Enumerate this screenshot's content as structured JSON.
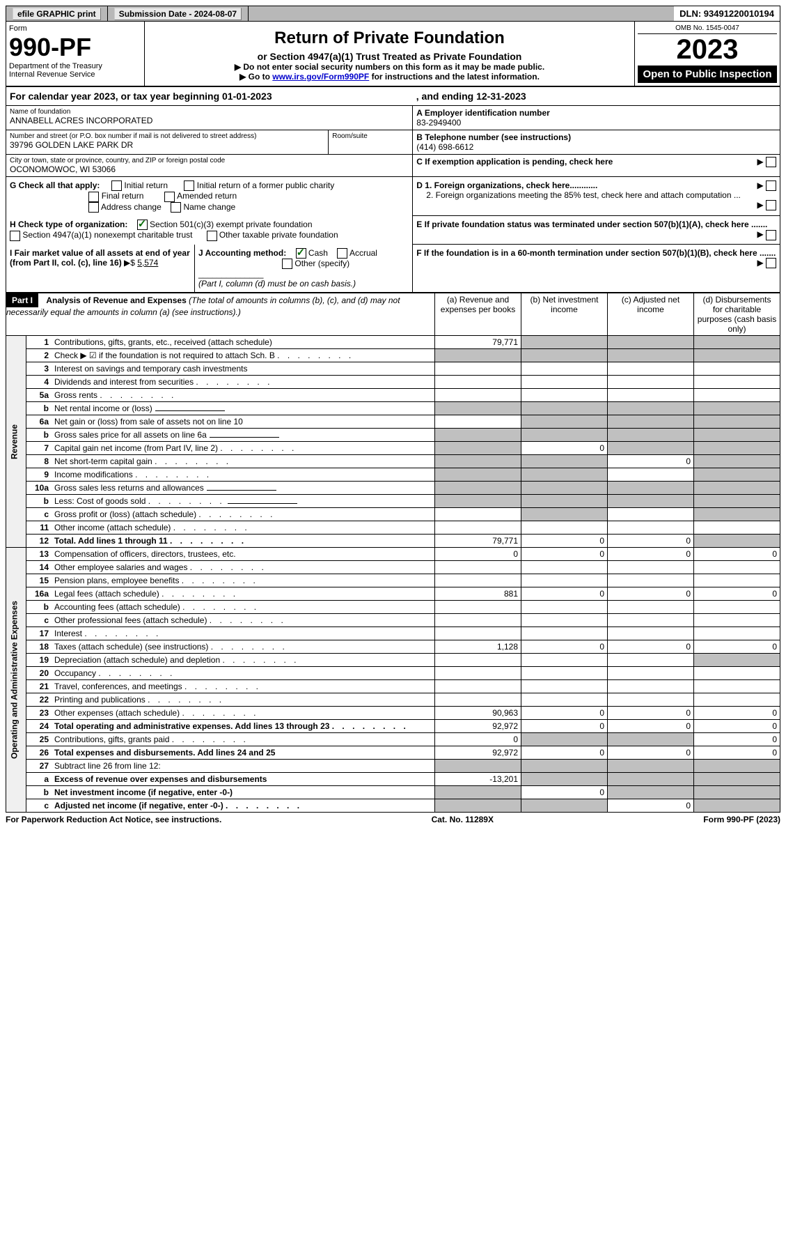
{
  "topBar": {
    "efile": "efile GRAPHIC print",
    "submissionLabel": "Submission Date - 2024-08-07",
    "dln": "DLN: 93491220010194"
  },
  "header": {
    "formLabel": "Form",
    "formNumber": "990-PF",
    "dept": "Department of the Treasury",
    "irs": "Internal Revenue Service",
    "title": "Return of Private Foundation",
    "subtitle": "or Section 4947(a)(1) Trust Treated as Private Foundation",
    "note1": "▶ Do not enter social security numbers on this form as it may be made public.",
    "note2Prefix": "▶ Go to ",
    "note2Link": "www.irs.gov/Form990PF",
    "note2Suffix": " for instructions and the latest information.",
    "omb": "OMB No. 1545-0047",
    "year": "2023",
    "openPublic": "Open to Public Inspection"
  },
  "calendar": {
    "text": "For calendar year 2023, or tax year beginning 01-01-2023",
    "ending": ", and ending 12-31-2023"
  },
  "entity": {
    "nameLabel": "Name of foundation",
    "name": "ANNABELL ACRES INCORPORATED",
    "addressLabel": "Number and street (or P.O. box number if mail is not delivered to street address)",
    "address": "39796 GOLDEN LAKE PARK DR",
    "roomLabel": "Room/suite",
    "cityLabel": "City or town, state or province, country, and ZIP or foreign postal code",
    "city": "OCONOMOWOC, WI  53066",
    "einLabel": "A Employer identification number",
    "ein": "83-2949400",
    "phoneLabel": "B Telephone number (see instructions)",
    "phone": "(414) 698-6612",
    "cLabel": "C If exemption application is pending, check here"
  },
  "checks": {
    "gLabel": "G Check all that apply:",
    "initial": "Initial return",
    "initialFormer": "Initial return of a former public charity",
    "final": "Final return",
    "amended": "Amended return",
    "addressChange": "Address change",
    "nameChange": "Name change",
    "hLabel": "H Check type of organization:",
    "h501c3": "Section 501(c)(3) exempt private foundation",
    "h4947": "Section 4947(a)(1) nonexempt charitable trust",
    "hOther": "Other taxable private foundation",
    "iLabel": "I Fair market value of all assets at end of year (from Part II, col. (c), line 16)",
    "iValue": "5,574",
    "jLabel": "J Accounting method:",
    "jCash": "Cash",
    "jAccrual": "Accrual",
    "jOther": "Other (specify)",
    "jNote": "(Part I, column (d) must be on cash basis.)",
    "d1": "D 1. Foreign organizations, check here............",
    "d2": "2. Foreign organizations meeting the 85% test, check here and attach computation ...",
    "eLabel": "E  If private foundation status was terminated under section 507(b)(1)(A), check here .......",
    "fLabel": "F  If the foundation is in a 60-month termination under section 507(b)(1)(B), check here .......",
    "arrow": "▶"
  },
  "part1": {
    "label": "Part I",
    "title": "Analysis of Revenue and Expenses",
    "titleNote": " (The total of amounts in columns (b), (c), and (d) may not necessarily equal the amounts in column (a) (see instructions).)",
    "colA": "(a)   Revenue and expenses per books",
    "colB": "(b)   Net investment income",
    "colC": "(c)   Adjusted net income",
    "colD": "(d)   Disbursements for charitable purposes (cash basis only)",
    "revenueLabel": "Revenue",
    "opExpLabel": "Operating and Administrative Expenses"
  },
  "rows": [
    {
      "n": "1",
      "desc": "Contributions, gifts, grants, etc., received (attach schedule)",
      "a": "79,771",
      "grey": [
        "b",
        "c",
        "d"
      ]
    },
    {
      "n": "2",
      "desc": "Check ▶ ☑ if the foundation is not required to attach Sch. B",
      "dots": true,
      "grey": [
        "a",
        "b",
        "c",
        "d"
      ]
    },
    {
      "n": "3",
      "desc": "Interest on savings and temporary cash investments"
    },
    {
      "n": "4",
      "desc": "Dividends and interest from securities",
      "dots": true
    },
    {
      "n": "5a",
      "desc": "Gross rents",
      "dots": true
    },
    {
      "n": "b",
      "desc": "Net rental income or (loss)",
      "input": true,
      "grey": [
        "a",
        "b",
        "c",
        "d"
      ]
    },
    {
      "n": "6a",
      "desc": "Net gain or (loss) from sale of assets not on line 10",
      "grey": [
        "b",
        "c",
        "d"
      ]
    },
    {
      "n": "b",
      "desc": "Gross sales price for all assets on line 6a",
      "input": true,
      "grey": [
        "a",
        "b",
        "c",
        "d"
      ]
    },
    {
      "n": "7",
      "desc": "Capital gain net income (from Part IV, line 2)",
      "dots": true,
      "b": "0",
      "grey": [
        "a",
        "c",
        "d"
      ]
    },
    {
      "n": "8",
      "desc": "Net short-term capital gain",
      "dots": true,
      "c": "0",
      "grey": [
        "a",
        "b",
        "d"
      ]
    },
    {
      "n": "9",
      "desc": "Income modifications",
      "dots": true,
      "grey": [
        "a",
        "b",
        "d"
      ]
    },
    {
      "n": "10a",
      "desc": "Gross sales less returns and allowances",
      "input": true,
      "grey": [
        "a",
        "b",
        "c",
        "d"
      ]
    },
    {
      "n": "b",
      "desc": "Less: Cost of goods sold",
      "dots": true,
      "input": true,
      "grey": [
        "a",
        "b",
        "c",
        "d"
      ]
    },
    {
      "n": "c",
      "desc": "Gross profit or (loss) (attach schedule)",
      "dots": true,
      "grey": [
        "b",
        "d"
      ]
    },
    {
      "n": "11",
      "desc": "Other income (attach schedule)",
      "dots": true
    },
    {
      "n": "12",
      "desc": "Total. Add lines 1 through 11",
      "dots": true,
      "bold": true,
      "a": "79,771",
      "b": "0",
      "c": "0",
      "grey": [
        "d"
      ]
    },
    {
      "n": "13",
      "desc": "Compensation of officers, directors, trustees, etc.",
      "a": "0",
      "b": "0",
      "c": "0",
      "d": "0"
    },
    {
      "n": "14",
      "desc": "Other employee salaries and wages",
      "dots": true
    },
    {
      "n": "15",
      "desc": "Pension plans, employee benefits",
      "dots": true
    },
    {
      "n": "16a",
      "desc": "Legal fees (attach schedule)",
      "dots": true,
      "a": "881",
      "b": "0",
      "c": "0",
      "d": "0"
    },
    {
      "n": "b",
      "desc": "Accounting fees (attach schedule)",
      "dots": true
    },
    {
      "n": "c",
      "desc": "Other professional fees (attach schedule)",
      "dots": true
    },
    {
      "n": "17",
      "desc": "Interest",
      "dots": true
    },
    {
      "n": "18",
      "desc": "Taxes (attach schedule) (see instructions)",
      "dots": true,
      "a": "1,128",
      "b": "0",
      "c": "0",
      "d": "0"
    },
    {
      "n": "19",
      "desc": "Depreciation (attach schedule) and depletion",
      "dots": true,
      "grey": [
        "d"
      ]
    },
    {
      "n": "20",
      "desc": "Occupancy",
      "dots": true
    },
    {
      "n": "21",
      "desc": "Travel, conferences, and meetings",
      "dots": true
    },
    {
      "n": "22",
      "desc": "Printing and publications",
      "dots": true
    },
    {
      "n": "23",
      "desc": "Other expenses (attach schedule)",
      "dots": true,
      "a": "90,963",
      "b": "0",
      "c": "0",
      "d": "0"
    },
    {
      "n": "24",
      "desc": "Total operating and administrative expenses. Add lines 13 through 23",
      "dots": true,
      "bold": true,
      "a": "92,972",
      "b": "0",
      "c": "0",
      "d": "0"
    },
    {
      "n": "25",
      "desc": "Contributions, gifts, grants paid",
      "dots": true,
      "a": "0",
      "d": "0",
      "grey": [
        "b",
        "c"
      ]
    },
    {
      "n": "26",
      "desc": "Total expenses and disbursements. Add lines 24 and 25",
      "bold": true,
      "a": "92,972",
      "b": "0",
      "c": "0",
      "d": "0"
    },
    {
      "n": "27",
      "desc": "Subtract line 26 from line 12:",
      "grey": [
        "a",
        "b",
        "c",
        "d"
      ]
    },
    {
      "n": "a",
      "desc": "Excess of revenue over expenses and disbursements",
      "bold": true,
      "a": "-13,201",
      "grey": [
        "b",
        "c",
        "d"
      ]
    },
    {
      "n": "b",
      "desc": "Net investment income (if negative, enter -0-)",
      "bold": true,
      "b": "0",
      "grey": [
        "a",
        "c",
        "d"
      ]
    },
    {
      "n": "c",
      "desc": "Adjusted net income (if negative, enter -0-)",
      "dots": true,
      "bold": true,
      "c": "0",
      "grey": [
        "a",
        "b",
        "d"
      ]
    }
  ],
  "footer": {
    "left": "For Paperwork Reduction Act Notice, see instructions.",
    "center": "Cat. No. 11289X",
    "right": "Form 990-PF (2023)"
  }
}
